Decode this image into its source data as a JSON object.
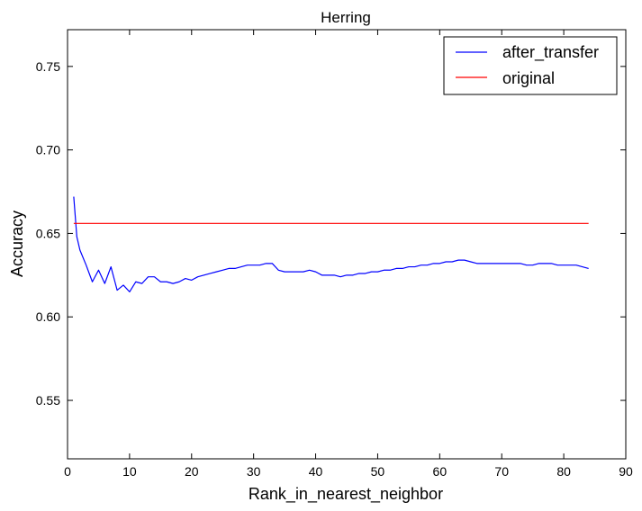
{
  "chart_data": {
    "type": "line",
    "title": "Herring",
    "xlabel": "Rank_in_nearest_neighbor",
    "ylabel": "Accuracy",
    "xlim": [
      0,
      90
    ],
    "ylim": [
      0.515,
      0.772
    ],
    "xticks": [
      0,
      10,
      20,
      30,
      40,
      50,
      60,
      70,
      80,
      90
    ],
    "yticks": [
      0.55,
      0.6,
      0.65,
      0.7,
      0.75
    ],
    "xtick_labels": [
      "0",
      "10",
      "20",
      "30",
      "40",
      "50",
      "60",
      "70",
      "80",
      "90"
    ],
    "ytick_labels": [
      "0.55",
      "0.60",
      "0.65",
      "0.70",
      "0.75"
    ],
    "grid": false,
    "legend_position": "top-right",
    "series": [
      {
        "name": "after_transfer",
        "color": "#0000ff",
        "x": [
          1,
          1.5,
          2,
          3,
          3.5,
          4,
          5,
          6,
          7,
          8,
          9,
          10,
          11,
          12,
          13,
          14,
          15,
          16,
          17,
          18,
          19,
          20,
          21,
          22,
          23,
          24,
          25,
          26,
          27,
          28,
          29,
          30,
          31,
          32,
          33,
          34,
          35,
          36,
          37,
          38,
          39,
          40,
          41,
          42,
          43,
          44,
          45,
          46,
          47,
          48,
          49,
          50,
          51,
          52,
          53,
          54,
          55,
          56,
          57,
          58,
          59,
          60,
          61,
          62,
          63,
          64,
          65,
          66,
          67,
          68,
          69,
          70,
          71,
          72,
          73,
          74,
          75,
          76,
          77,
          78,
          79,
          80,
          81,
          82,
          83,
          84
        ],
        "y": [
          0.672,
          0.648,
          0.64,
          0.631,
          0.626,
          0.621,
          0.628,
          0.62,
          0.63,
          0.616,
          0.619,
          0.615,
          0.621,
          0.62,
          0.624,
          0.624,
          0.621,
          0.621,
          0.62,
          0.621,
          0.623,
          0.622,
          0.624,
          0.625,
          0.626,
          0.627,
          0.628,
          0.629,
          0.629,
          0.63,
          0.631,
          0.631,
          0.631,
          0.632,
          0.632,
          0.628,
          0.627,
          0.627,
          0.627,
          0.627,
          0.628,
          0.627,
          0.625,
          0.625,
          0.625,
          0.624,
          0.625,
          0.625,
          0.626,
          0.626,
          0.627,
          0.627,
          0.628,
          0.628,
          0.629,
          0.629,
          0.63,
          0.63,
          0.631,
          0.631,
          0.632,
          0.632,
          0.633,
          0.633,
          0.634,
          0.634,
          0.633,
          0.632,
          0.632,
          0.632,
          0.632,
          0.632,
          0.632,
          0.632,
          0.632,
          0.631,
          0.631,
          0.632,
          0.632,
          0.632,
          0.631,
          0.631,
          0.631,
          0.631,
          0.63,
          0.629
        ]
      },
      {
        "name": "original",
        "color": "#ff0000",
        "x": [
          1,
          84
        ],
        "y": [
          0.656,
          0.656
        ]
      }
    ]
  }
}
